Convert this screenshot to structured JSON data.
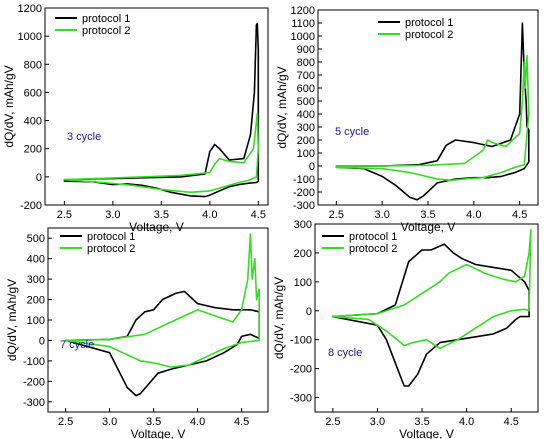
{
  "colors": {
    "protocol_1": "#000000",
    "protocol_2": "#33dd22",
    "cycle_label": "#1a1aa0"
  },
  "chart_data": [
    {
      "type": "line",
      "annotation": "3 cycle",
      "xlabel": "Voltage, V",
      "ylabel": "dQ/dV, mAh/gV",
      "xlim": [
        2.3,
        4.6
      ],
      "ylim": [
        -200,
        1200
      ],
      "xticks": [
        "2.5",
        "3.0",
        "3.5",
        "4.0",
        "4.5"
      ],
      "yticks": [
        "-200",
        "0",
        "200",
        "400",
        "600",
        "800",
        "1000",
        "1200"
      ],
      "legend": {
        "position": "top-left",
        "entries": [
          "protocol 1",
          "protocol 2"
        ]
      },
      "series": [
        {
          "name": "protocol 1",
          "color": "#000000",
          "x": [
            2.5,
            2.8,
            3.1,
            3.4,
            3.7,
            3.95,
            4.0,
            4.05,
            4.1,
            4.2,
            4.35,
            4.42,
            4.46,
            4.48,
            4.49,
            4.5,
            4.5,
            4.48,
            4.4,
            4.3,
            4.2,
            4.1,
            4.0,
            3.95,
            3.8,
            3.6,
            3.45,
            3.3,
            3.15,
            3.0,
            2.8,
            2.5
          ],
          "y": [
            -20,
            -15,
            -10,
            -5,
            0,
            20,
            180,
            230,
            200,
            120,
            130,
            300,
            600,
            1080,
            1090,
            900,
            -30,
            -40,
            -45,
            -55,
            -70,
            -100,
            -130,
            -140,
            -135,
            -110,
            -80,
            -60,
            -50,
            -55,
            -35,
            -30
          ]
        },
        {
          "name": "protocol 2",
          "color": "#33dd22",
          "x": [
            2.5,
            2.9,
            3.3,
            3.7,
            4.0,
            4.05,
            4.1,
            4.2,
            4.35,
            4.45,
            4.49,
            4.5,
            4.48,
            4.4,
            4.3,
            4.2,
            4.1,
            4.0,
            3.8,
            3.5,
            3.2,
            2.9,
            2.5
          ],
          "y": [
            -20,
            -10,
            0,
            10,
            30,
            90,
            130,
            110,
            100,
            200,
            450,
            200,
            0,
            -25,
            -40,
            -60,
            -80,
            -100,
            -110,
            -90,
            -60,
            -40,
            -20
          ]
        }
      ]
    },
    {
      "type": "line",
      "annotation": "5 cycle",
      "xlabel": "Voltage, V",
      "ylabel": "dQ/dV, mAh/gV",
      "xlim": [
        2.3,
        4.7
      ],
      "ylim": [
        -300,
        1200
      ],
      "xticks": [
        "2.5",
        "3.0",
        "3.5",
        "4.0",
        "4.5"
      ],
      "yticks": [
        "-300",
        "-200",
        "-100",
        "0",
        "100",
        "200",
        "300",
        "400",
        "500",
        "600",
        "700",
        "800",
        "900",
        "1000",
        "1100",
        "1200"
      ],
      "legend": {
        "position": "top-right",
        "entries": [
          "protocol 1",
          "protocol 2"
        ]
      },
      "series": [
        {
          "name": "protocol 1",
          "color": "#000000",
          "x": [
            2.5,
            3.0,
            3.4,
            3.6,
            3.7,
            3.8,
            4.0,
            4.2,
            4.4,
            4.5,
            4.53,
            4.55,
            4.57,
            4.58,
            4.6,
            4.6,
            4.55,
            4.45,
            4.3,
            4.15,
            4.0,
            3.8,
            3.6,
            3.45,
            3.38,
            3.3,
            3.15,
            3.0,
            2.8,
            2.5
          ],
          "y": [
            0,
            0,
            10,
            40,
            160,
            200,
            180,
            150,
            200,
            400,
            1100,
            700,
            500,
            300,
            280,
            30,
            -20,
            -50,
            -80,
            -90,
            -90,
            -100,
            -130,
            -230,
            -260,
            -240,
            -150,
            -80,
            -20,
            -10
          ]
        },
        {
          "name": "protocol 2",
          "color": "#33dd22",
          "x": [
            2.5,
            3.0,
            3.5,
            3.9,
            4.1,
            4.15,
            4.2,
            4.35,
            4.5,
            4.53,
            4.55,
            4.56,
            4.58,
            4.6,
            4.55,
            4.45,
            4.3,
            4.1,
            3.9,
            3.75,
            3.6,
            3.3,
            3.0,
            2.5
          ],
          "y": [
            0,
            0,
            5,
            20,
            120,
            200,
            180,
            150,
            250,
            500,
            800,
            600,
            850,
            400,
            10,
            -10,
            -50,
            -90,
            -100,
            -110,
            -100,
            -50,
            -20,
            -10
          ]
        }
      ]
    },
    {
      "type": "line",
      "annotation": "7 cycle",
      "xlabel": "Voltage, V",
      "ylabel": "dQ/dV, mAh/gV",
      "xlim": [
        2.3,
        4.8
      ],
      "ylim": [
        -350,
        550
      ],
      "xticks": [
        "2.5",
        "3.0",
        "3.5",
        "4.0",
        "4.5"
      ],
      "yticks": [
        "-300",
        "-200",
        "-100",
        "0",
        "100",
        "200",
        "300",
        "400",
        "500"
      ],
      "legend": {
        "position": "top-left",
        "entries": [
          "protocol 1",
          "protocol 2"
        ]
      },
      "series": [
        {
          "name": "protocol 1",
          "color": "#000000",
          "x": [
            2.5,
            3.0,
            3.2,
            3.3,
            3.4,
            3.5,
            3.6,
            3.75,
            3.85,
            4.0,
            4.2,
            4.4,
            4.6,
            4.7,
            4.7,
            4.6,
            4.5,
            4.45,
            4.3,
            4.1,
            3.9,
            3.7,
            3.55,
            3.45,
            3.35,
            3.3,
            3.2,
            3.0,
            2.5
          ],
          "y": [
            0,
            5,
            20,
            100,
            140,
            150,
            200,
            230,
            240,
            180,
            160,
            150,
            150,
            140,
            10,
            30,
            20,
            -20,
            -60,
            -100,
            -120,
            -140,
            -160,
            -210,
            -260,
            -270,
            -230,
            -60,
            0
          ]
        },
        {
          "name": "protocol 2",
          "color": "#33dd22",
          "x": [
            2.5,
            3.0,
            3.4,
            3.7,
            3.9,
            4.0,
            4.2,
            4.4,
            4.5,
            4.57,
            4.6,
            4.62,
            4.65,
            4.67,
            4.7,
            4.7,
            4.6,
            4.5,
            4.3,
            4.1,
            3.9,
            3.7,
            3.5,
            3.35,
            3.3,
            3.2,
            3.0,
            2.5
          ],
          "y": [
            0,
            5,
            30,
            90,
            130,
            150,
            120,
            90,
            150,
            300,
            520,
            300,
            400,
            200,
            250,
            0,
            -5,
            -10,
            -40,
            -80,
            -120,
            -130,
            -110,
            -100,
            -90,
            -70,
            -30,
            0
          ]
        }
      ]
    },
    {
      "type": "line",
      "annotation": "8 cycle",
      "xlabel": "Voltage, V",
      "ylabel": "dQ/dV, mAh/gV",
      "xlim": [
        2.3,
        4.8
      ],
      "ylim": [
        -350,
        300
      ],
      "xticks": [
        "2.5",
        "3.0",
        "3.5",
        "4.0",
        "4.5"
      ],
      "yticks": [
        "-300",
        "-200",
        "-100",
        "0",
        "100",
        "200",
        "300"
      ],
      "legend": {
        "position": "top-left",
        "entries": [
          "protocol 1",
          "protocol 2"
        ]
      },
      "series": [
        {
          "name": "protocol 1",
          "color": "#000000",
          "x": [
            2.5,
            3.0,
            3.2,
            3.35,
            3.5,
            3.6,
            3.75,
            3.85,
            3.95,
            4.1,
            4.3,
            4.5,
            4.65,
            4.7,
            4.7,
            4.6,
            4.55,
            4.45,
            4.3,
            4.1,
            3.9,
            3.7,
            3.55,
            3.45,
            3.35,
            3.3,
            3.25,
            3.1,
            3.0,
            2.5
          ],
          "y": [
            -20,
            -10,
            20,
            170,
            210,
            210,
            230,
            200,
            180,
            160,
            150,
            140,
            100,
            70,
            -20,
            -20,
            -30,
            -60,
            -80,
            -90,
            -100,
            -110,
            -150,
            -220,
            -260,
            -260,
            -220,
            -100,
            -50,
            -20
          ]
        },
        {
          "name": "protocol 2",
          "color": "#33dd22",
          "x": [
            2.5,
            3.0,
            3.3,
            3.5,
            3.7,
            3.8,
            4.0,
            4.2,
            4.4,
            4.55,
            4.65,
            4.7,
            4.72,
            4.7,
            4.65,
            4.5,
            4.3,
            4.1,
            3.9,
            3.7,
            3.55,
            3.4,
            3.3,
            3.1,
            2.9,
            2.5
          ],
          "y": [
            -20,
            -10,
            20,
            60,
            100,
            130,
            160,
            130,
            110,
            100,
            120,
            200,
            280,
            0,
            5,
            0,
            -20,
            -60,
            -100,
            -130,
            -100,
            -110,
            -120,
            -70,
            -30,
            -20
          ]
        }
      ]
    }
  ]
}
